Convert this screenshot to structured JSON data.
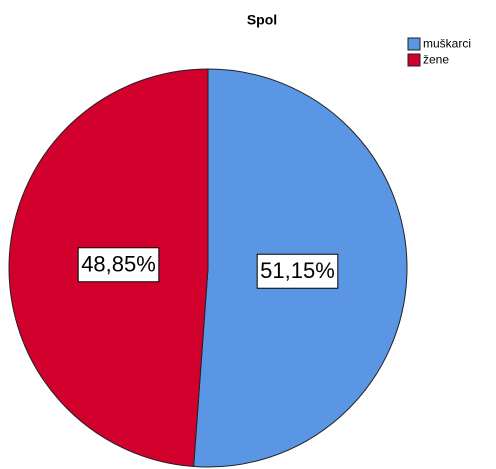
{
  "chart_data": {
    "type": "pie",
    "title": "Spol",
    "categories": [
      "muškarci",
      "žene"
    ],
    "values": [
      51.15,
      48.85
    ],
    "value_labels": [
      "51,15%",
      "48,85%"
    ],
    "colors": [
      "#5a96e3",
      "#d2002d"
    ]
  }
}
